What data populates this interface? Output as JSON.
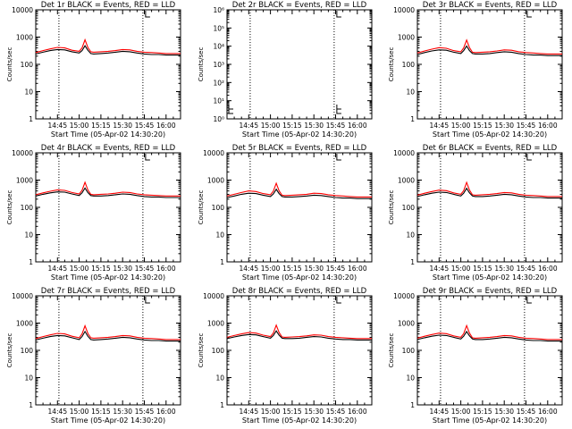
{
  "figure": {
    "title_suffix": "BLACK = Events, RED = LLD",
    "ylabel": "Counts/sec",
    "xlabel": "Start Time (05-Apr-02 14:30:20)",
    "series_colors": {
      "events": "#000000",
      "lld": "#ff0000"
    }
  },
  "chart_data": [
    {
      "type": "line",
      "title": "Det 1r BLACK = Events, RED = LLD",
      "xlabel": "Start Time (05-Apr-02 14:30:20)",
      "ylabel": "Counts/sec",
      "yscale": "log",
      "ylim": [
        1,
        10000
      ],
      "ytick_labels": [
        "1",
        "10",
        "100",
        "1000",
        "10000"
      ],
      "xtick_labels": [
        "14:45",
        "15:00",
        "15:15",
        "15:30",
        "15:45",
        "16:00"
      ],
      "x": [
        "14:30",
        "14:35",
        "14:40",
        "14:45",
        "14:50",
        "14:55",
        "15:00",
        "15:02",
        "15:04",
        "15:06",
        "15:08",
        "15:10",
        "15:15",
        "15:20",
        "15:25",
        "15:30",
        "15:35",
        "15:40",
        "15:45",
        "15:50",
        "15:55",
        "16:00",
        "16:05",
        "16:10"
      ],
      "series": [
        {
          "name": "Events",
          "values": [
            240,
            280,
            320,
            350,
            340,
            290,
            260,
            320,
            480,
            330,
            250,
            240,
            250,
            260,
            280,
            300,
            290,
            260,
            240,
            230,
            230,
            220,
            220,
            220
          ]
        },
        {
          "name": "LLD",
          "values": [
            270,
            320,
            370,
            420,
            400,
            330,
            300,
            400,
            800,
            420,
            290,
            280,
            290,
            300,
            320,
            350,
            340,
            300,
            280,
            270,
            260,
            250,
            250,
            250
          ]
        }
      ],
      "markers": [
        "14:46",
        "15:44"
      ]
    },
    {
      "type": "line",
      "title": "Det 2r BLACK = Events, RED = LLD",
      "xlabel": "Start Time (05-Apr-02 14:30:20)",
      "ylabel": "Counts/sec",
      "yscale": "log",
      "ylim": [
        1,
        1000000
      ],
      "ytick_labels": [
        "10⁰",
        "10¹",
        "10²",
        "10³",
        "10⁴",
        "10⁵",
        "10⁶"
      ],
      "xtick_labels": [
        "14:45",
        "15:00",
        "15:15",
        "15:30",
        "15:45",
        "16:00"
      ],
      "x": [],
      "series": [],
      "markers": [
        "14:46",
        "15:44"
      ]
    },
    {
      "type": "line",
      "title": "Det 3r BLACK = Events, RED = LLD",
      "xlabel": "Start Time (05-Apr-02 14:30:20)",
      "ylabel": "Counts/sec",
      "yscale": "log",
      "ylim": [
        1,
        10000
      ],
      "ytick_labels": [
        "1",
        "10",
        "100",
        "1000",
        "10000"
      ],
      "xtick_labels": [
        "14:45",
        "15:00",
        "15:15",
        "15:30",
        "15:45",
        "16:00"
      ],
      "x": [
        "14:30",
        "14:35",
        "14:40",
        "14:45",
        "14:50",
        "14:55",
        "15:00",
        "15:02",
        "15:04",
        "15:06",
        "15:08",
        "15:10",
        "15:15",
        "15:20",
        "15:25",
        "15:30",
        "15:35",
        "15:40",
        "15:45",
        "15:50",
        "15:55",
        "16:00",
        "16:05",
        "16:10"
      ],
      "series": [
        {
          "name": "Events",
          "values": [
            230,
            270,
            310,
            340,
            330,
            280,
            250,
            320,
            470,
            320,
            250,
            240,
            240,
            250,
            270,
            290,
            280,
            250,
            230,
            220,
            220,
            210,
            210,
            210
          ]
        },
        {
          "name": "LLD",
          "values": [
            260,
            310,
            360,
            410,
            390,
            320,
            290,
            400,
            780,
            410,
            280,
            270,
            280,
            290,
            310,
            340,
            330,
            290,
            270,
            260,
            250,
            240,
            240,
            240
          ]
        }
      ],
      "markers": [
        "14:46",
        "15:44"
      ]
    },
    {
      "type": "line",
      "title": "Det 4r BLACK = Events, RED = LLD",
      "xlabel": "Start Time (05-Apr-02 14:30:20)",
      "ylabel": "Counts/sec",
      "yscale": "log",
      "ylim": [
        1,
        10000
      ],
      "ytick_labels": [
        "1",
        "10",
        "100",
        "1000",
        "10000"
      ],
      "xtick_labels": [
        "14:45",
        "15:00",
        "15:15",
        "15:30",
        "15:45",
        "16:00"
      ],
      "x": [
        "14:30",
        "14:35",
        "14:40",
        "14:45",
        "14:50",
        "14:55",
        "15:00",
        "15:02",
        "15:04",
        "15:06",
        "15:08",
        "15:10",
        "15:15",
        "15:20",
        "15:25",
        "15:30",
        "15:35",
        "15:40",
        "15:45",
        "15:50",
        "15:55",
        "16:00",
        "16:05",
        "16:10"
      ],
      "series": [
        {
          "name": "Events",
          "values": [
            260,
            300,
            340,
            370,
            360,
            310,
            270,
            340,
            510,
            350,
            270,
            260,
            260,
            270,
            290,
            310,
            300,
            270,
            250,
            240,
            240,
            230,
            230,
            230
          ]
        },
        {
          "name": "LLD",
          "values": [
            290,
            340,
            390,
            440,
            420,
            350,
            310,
            420,
            830,
            440,
            300,
            290,
            300,
            310,
            330,
            360,
            350,
            310,
            290,
            280,
            270,
            260,
            260,
            260
          ]
        }
      ],
      "markers": [
        "14:46",
        "15:44"
      ]
    },
    {
      "type": "line",
      "title": "Det 5r BLACK = Events, RED = LLD",
      "xlabel": "Start Time (05-Apr-02 14:30:20)",
      "ylabel": "Counts/sec",
      "yscale": "log",
      "ylim": [
        1,
        10000
      ],
      "ytick_labels": [
        "1",
        "10",
        "100",
        "1000",
        "10000"
      ],
      "xtick_labels": [
        "14:45",
        "15:00",
        "15:15",
        "15:30",
        "15:45",
        "16:00"
      ],
      "x": [
        "14:30",
        "14:35",
        "14:40",
        "14:45",
        "14:50",
        "14:55",
        "15:00",
        "15:02",
        "15:04",
        "15:06",
        "15:08",
        "15:10",
        "15:15",
        "15:20",
        "15:25",
        "15:30",
        "15:35",
        "15:40",
        "15:45",
        "15:50",
        "15:55",
        "16:00",
        "16:05",
        "16:10"
      ],
      "series": [
        {
          "name": "Events",
          "values": [
            230,
            260,
            300,
            330,
            320,
            280,
            250,
            310,
            460,
            320,
            250,
            240,
            240,
            250,
            260,
            280,
            270,
            250,
            230,
            220,
            220,
            210,
            210,
            210
          ]
        },
        {
          "name": "LLD",
          "values": [
            260,
            300,
            350,
            400,
            380,
            320,
            290,
            390,
            760,
            400,
            280,
            270,
            280,
            290,
            300,
            330,
            320,
            290,
            270,
            260,
            250,
            240,
            240,
            240
          ]
        }
      ],
      "markers": [
        "14:46",
        "15:44"
      ]
    },
    {
      "type": "line",
      "title": "Det 6r BLACK = Events, RED = LLD",
      "xlabel": "Start Time (05-Apr-02 14:30:20)",
      "ylabel": "Counts/sec",
      "yscale": "log",
      "ylim": [
        1,
        10000
      ],
      "ytick_labels": [
        "1",
        "10",
        "100",
        "1000",
        "10000"
      ],
      "xtick_labels": [
        "14:45",
        "15:00",
        "15:15",
        "15:30",
        "15:45",
        "16:00"
      ],
      "x": [
        "14:30",
        "14:35",
        "14:40",
        "14:45",
        "14:50",
        "14:55",
        "15:00",
        "15:02",
        "15:04",
        "15:06",
        "15:08",
        "15:10",
        "15:15",
        "15:20",
        "15:25",
        "15:30",
        "15:35",
        "15:40",
        "15:45",
        "15:50",
        "15:55",
        "16:00",
        "16:05",
        "16:10"
      ],
      "series": [
        {
          "name": "Events",
          "values": [
            250,
            290,
            330,
            360,
            350,
            300,
            260,
            330,
            500,
            340,
            260,
            250,
            250,
            260,
            280,
            300,
            290,
            260,
            240,
            230,
            230,
            220,
            220,
            220
          ]
        },
        {
          "name": "LLD",
          "values": [
            280,
            330,
            380,
            430,
            410,
            340,
            300,
            410,
            820,
            430,
            290,
            280,
            290,
            300,
            320,
            350,
            340,
            300,
            280,
            270,
            260,
            250,
            250,
            250
          ]
        }
      ],
      "markers": [
        "14:46",
        "15:44"
      ]
    },
    {
      "type": "line",
      "title": "Det 7r BLACK = Events, RED = LLD",
      "xlabel": "Start Time (05-Apr-02 14:30:20)",
      "ylabel": "Counts/sec",
      "yscale": "log",
      "ylim": [
        1,
        10000
      ],
      "ytick_labels": [
        "1",
        "10",
        "100",
        "1000",
        "10000"
      ],
      "xtick_labels": [
        "14:45",
        "15:00",
        "15:15",
        "15:30",
        "15:45",
        "16:00"
      ],
      "x": [
        "14:30",
        "14:35",
        "14:40",
        "14:45",
        "14:50",
        "14:55",
        "15:00",
        "15:02",
        "15:04",
        "15:06",
        "15:08",
        "15:10",
        "15:15",
        "15:20",
        "15:25",
        "15:30",
        "15:35",
        "15:40",
        "15:45",
        "15:50",
        "15:55",
        "16:00",
        "16:05",
        "16:10"
      ],
      "series": [
        {
          "name": "Events",
          "values": [
            240,
            280,
            320,
            350,
            340,
            290,
            250,
            320,
            490,
            330,
            250,
            240,
            250,
            260,
            280,
            300,
            290,
            260,
            240,
            230,
            230,
            220,
            220,
            220
          ]
        },
        {
          "name": "LLD",
          "values": [
            270,
            320,
            370,
            420,
            400,
            330,
            290,
            400,
            800,
            420,
            290,
            280,
            290,
            300,
            320,
            350,
            340,
            300,
            280,
            270,
            260,
            250,
            250,
            250
          ]
        }
      ],
      "markers": [
        "14:46",
        "15:44"
      ]
    },
    {
      "type": "line",
      "title": "Det 8r BLACK = Events, RED = LLD",
      "xlabel": "Start Time (05-Apr-02 14:30:20)",
      "ylabel": "Counts/sec",
      "yscale": "log",
      "ylim": [
        1,
        10000
      ],
      "ytick_labels": [
        "1",
        "10",
        "100",
        "1000",
        "10000"
      ],
      "xtick_labels": [
        "14:45",
        "15:00",
        "15:15",
        "15:30",
        "15:45",
        "16:00"
      ],
      "x": [
        "14:30",
        "14:35",
        "14:40",
        "14:45",
        "14:50",
        "14:55",
        "15:00",
        "15:02",
        "15:04",
        "15:06",
        "15:08",
        "15:10",
        "15:15",
        "15:20",
        "15:25",
        "15:30",
        "15:35",
        "15:40",
        "15:45",
        "15:50",
        "15:55",
        "16:00",
        "16:05",
        "16:10"
      ],
      "series": [
        {
          "name": "Events",
          "values": [
            270,
            310,
            350,
            380,
            370,
            320,
            280,
            350,
            520,
            360,
            280,
            270,
            270,
            280,
            300,
            320,
            310,
            280,
            260,
            250,
            250,
            240,
            240,
            240
          ]
        },
        {
          "name": "LLD",
          "values": [
            300,
            350,
            400,
            450,
            430,
            360,
            320,
            430,
            840,
            450,
            310,
            300,
            310,
            320,
            340,
            370,
            360,
            320,
            300,
            290,
            280,
            270,
            270,
            270
          ]
        }
      ],
      "markers": [
        "14:46",
        "15:44"
      ]
    },
    {
      "type": "line",
      "title": "Det 9r BLACK = Events, RED = LLD",
      "xlabel": "Start Time (05-Apr-02 14:30:20)",
      "ylabel": "Counts/sec",
      "yscale": "log",
      "ylim": [
        1,
        10000
      ],
      "ytick_labels": [
        "1",
        "10",
        "100",
        "1000",
        "10000"
      ],
      "xtick_labels": [
        "14:45",
        "15:00",
        "15:15",
        "15:30",
        "15:45",
        "16:00"
      ],
      "x": [
        "14:30",
        "14:35",
        "14:40",
        "14:45",
        "14:50",
        "14:55",
        "15:00",
        "15:02",
        "15:04",
        "15:06",
        "15:08",
        "15:10",
        "15:15",
        "15:20",
        "15:25",
        "15:30",
        "15:35",
        "15:40",
        "15:45",
        "15:50",
        "15:55",
        "16:00",
        "16:05",
        "16:10"
      ],
      "series": [
        {
          "name": "Events",
          "values": [
            250,
            290,
            330,
            360,
            350,
            300,
            260,
            330,
            490,
            340,
            260,
            250,
            250,
            260,
            280,
            300,
            290,
            260,
            240,
            230,
            230,
            220,
            220,
            220
          ]
        },
        {
          "name": "LLD",
          "values": [
            280,
            330,
            380,
            430,
            410,
            340,
            300,
            410,
            810,
            430,
            290,
            280,
            290,
            300,
            320,
            350,
            340,
            300,
            280,
            270,
            260,
            250,
            250,
            250
          ]
        }
      ],
      "markers": [
        "14:46",
        "15:44"
      ]
    }
  ]
}
